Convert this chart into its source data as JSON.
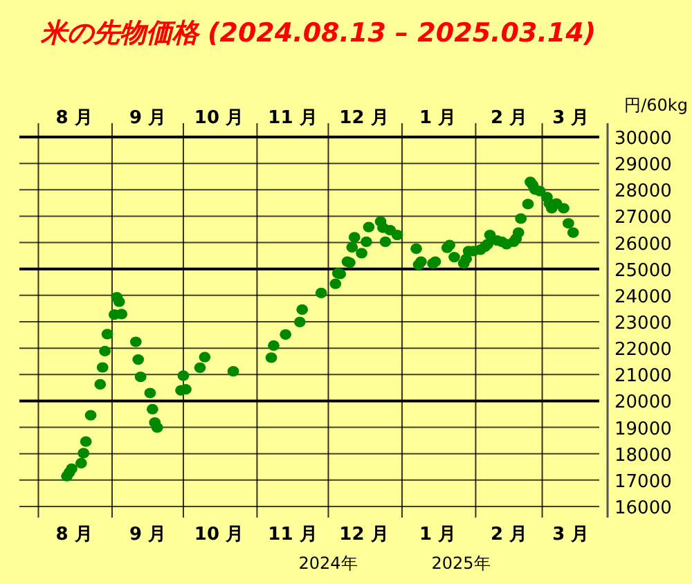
{
  "chart_data": {
    "type": "scatter",
    "title": "米の先物価格 (2024.08.13 – 2025.03.14)",
    "ylabel": "円/60kg",
    "xlim": [
      "2024-07-24",
      "2025-03-25"
    ],
    "xticks": [
      {
        "value": "2024-08-01",
        "label": null
      },
      {
        "value": "2024-08-16",
        "label": "8 月"
      },
      {
        "value": "2024-09-01",
        "label": null
      },
      {
        "value": "2024-09-16",
        "label": "9 月"
      },
      {
        "value": "2024-10-01",
        "label": null
      },
      {
        "value": "2024-10-16",
        "label": "10 月"
      },
      {
        "value": "2024-11-01",
        "label": null
      },
      {
        "value": "2024-11-16",
        "label": "11 月"
      },
      {
        "value": "2024-12-01",
        "label": null
      },
      {
        "value": "2024-12-16",
        "label": "12 月"
      },
      {
        "value": "2025-01-01",
        "label": null
      },
      {
        "value": "2025-01-16",
        "label": "1 月"
      },
      {
        "value": "2025-02-01",
        "label": null
      },
      {
        "value": "2025-02-15",
        "label": "2 月"
      },
      {
        "value": "2025-03-01",
        "label": null
      },
      {
        "value": "2025-03-13",
        "label": "3 月"
      }
    ],
    "x2lim": [
      "2024-07-24",
      "2025-03-25"
    ],
    "x2ticks": [
      {
        "value": "2024-08-16",
        "label": "8 月"
      },
      {
        "value": "2024-09-16",
        "label": "9 月"
      },
      {
        "value": "2024-10-16",
        "label": "10 月"
      },
      {
        "value": "2024-11-16",
        "label": "11 月"
      },
      {
        "value": "2024-12-16",
        "label": "12 月"
      },
      {
        "value": "2025-01-16",
        "label": "1 月"
      },
      {
        "value": "2025-02-15",
        "label": "2 月"
      },
      {
        "value": "2025-03-13",
        "label": "3 月"
      }
    ],
    "ylim": [
      16000,
      30000
    ],
    "yticks": [
      16000,
      17000,
      18000,
      19000,
      20000,
      21000,
      22000,
      23000,
      24000,
      25000,
      26000,
      27000,
      28000,
      29000,
      30000
    ],
    "grid": true,
    "marker": "circle",
    "annotations": [
      "2024年",
      "2025年"
    ],
    "series": [
      {
        "color": "#008800",
        "x": [
          "2024-08-13",
          "2024-08-14",
          "2024-08-15",
          "2024-08-19",
          "2024-08-20",
          "2024-08-21",
          "2024-08-23",
          "2024-08-27",
          "2024-08-28",
          "2024-08-29",
          "2024-08-30",
          "2024-09-02",
          "2024-09-03",
          "2024-09-04",
          "2024-09-05",
          "2024-09-11",
          "2024-09-12",
          "2024-09-13",
          "2024-09-17",
          "2024-09-18",
          "2024-09-19",
          "2024-09-20",
          "2024-09-30",
          "2024-10-01",
          "2024-10-02",
          "2024-10-08",
          "2024-10-10",
          "2024-10-22",
          "2024-11-07",
          "2024-11-08",
          "2024-11-13",
          "2024-11-19",
          "2024-11-20",
          "2024-11-28",
          "2024-12-04",
          "2024-12-05",
          "2024-12-06",
          "2024-12-09",
          "2024-12-10",
          "2024-12-11",
          "2024-12-12",
          "2024-12-15",
          "2024-12-17",
          "2024-12-18",
          "2024-12-23",
          "2024-12-24",
          "2024-12-25",
          "2024-12-27",
          "2024-12-30",
          "2025-01-07",
          "2025-01-08",
          "2025-01-09",
          "2025-01-14",
          "2025-01-15",
          "2025-01-20",
          "2025-01-21",
          "2025-01-23",
          "2025-01-27",
          "2025-01-28",
          "2025-01-29",
          "2025-01-31",
          "2025-02-03",
          "2025-02-05",
          "2025-02-06",
          "2025-02-07",
          "2025-02-10",
          "2025-02-12",
          "2025-02-14",
          "2025-02-17",
          "2025-02-18",
          "2025-02-19",
          "2025-02-20",
          "2025-02-23",
          "2025-02-24",
          "2025-02-25",
          "2025-02-26",
          "2025-02-28",
          "2025-03-03",
          "2025-03-04",
          "2025-03-05",
          "2025-03-07",
          "2025-03-10",
          "2025-03-12",
          "2025-03-14"
        ],
        "values": [
          17150,
          17290,
          17430,
          17640,
          18020,
          18460,
          19460,
          20630,
          21270,
          21890,
          22530,
          23270,
          23930,
          23760,
          23290,
          22240,
          21570,
          20910,
          20300,
          19690,
          19180,
          18990,
          20400,
          20960,
          20440,
          21260,
          21660,
          21120,
          21640,
          22100,
          22520,
          22990,
          23460,
          24090,
          24440,
          24840,
          24810,
          25280,
          25240,
          25820,
          26200,
          25600,
          26030,
          26590,
          26800,
          26560,
          26030,
          26470,
          26290,
          25770,
          25160,
          25280,
          25210,
          25280,
          25800,
          25910,
          25450,
          25210,
          25380,
          25680,
          25680,
          25730,
          25850,
          25940,
          26290,
          26080,
          26030,
          25940,
          26030,
          26150,
          26380,
          26910,
          27460,
          28300,
          28180,
          28010,
          27950,
          27720,
          27480,
          27300,
          27480,
          27300,
          26730,
          26380
        ]
      }
    ]
  }
}
